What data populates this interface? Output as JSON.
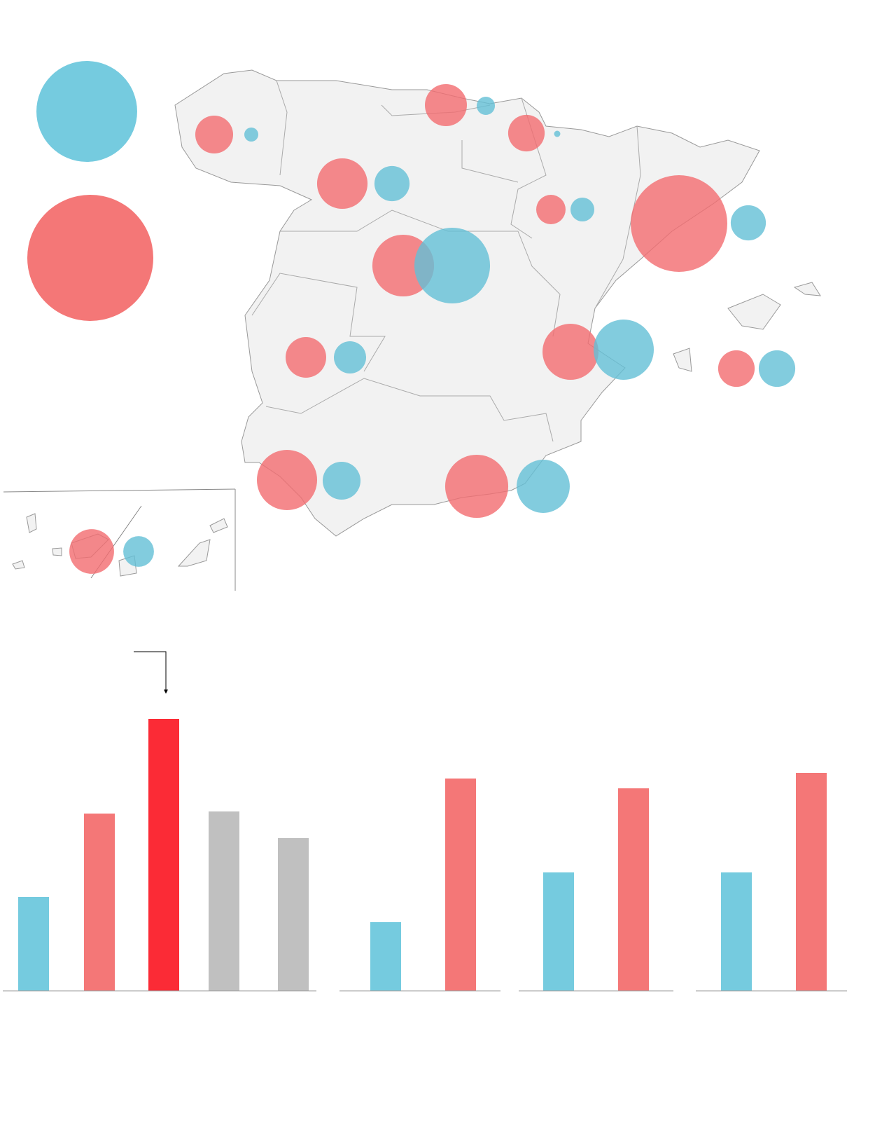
{
  "chart_data": [
    {
      "type": "bubble",
      "series": [
        {
          "color": "#f26b6f",
          "values": [
            7.3,
            9.0,
            6.8,
            13.0,
            4.4,
            47.6,
            19.4,
            8.4,
            16.0,
            6.8,
            18.5,
            20.3,
            10.2
          ]
        },
        {
          "color": "#63bfd6",
          "values": [
            1.0,
            1.7,
            0.2,
            6.3,
            2.9,
            6.3,
            29.2,
            5.3,
            18.5,
            6.8,
            7.3,
            14.4,
            4.8
          ]
        }
      ],
      "size_key": [
        51.8,
        81
      ],
      "size_key_colors": [
        "#75cbdf",
        "#f47777"
      ]
    },
    {
      "type": "bar",
      "categories": [
        null,
        null,
        null,
        null,
        null
      ],
      "values": [
        134,
        253,
        388,
        256,
        218
      ],
      "colors": [
        "#75cbdf",
        "#f47777",
        "#fb2b36",
        "#c0c0c0",
        "#c0c0c0"
      ],
      "ylim": [
        0,
        400
      ]
    },
    {
      "type": "bar",
      "categories": [
        null,
        null
      ],
      "values": [
        98,
        303
      ],
      "colors": [
        "#75cbdf",
        "#f47777"
      ],
      "ylim": [
        0,
        400
      ]
    },
    {
      "type": "bar",
      "categories": [
        null,
        null
      ],
      "values": [
        169,
        289
      ],
      "colors": [
        "#75cbdf",
        "#f47777"
      ],
      "ylim": [
        0,
        400
      ]
    },
    {
      "type": "bar",
      "categories": [
        null,
        null
      ],
      "values": [
        169,
        311
      ],
      "colors": [
        "#75cbdf",
        "#f47777"
      ],
      "ylim": [
        0,
        400
      ]
    }
  ]
}
